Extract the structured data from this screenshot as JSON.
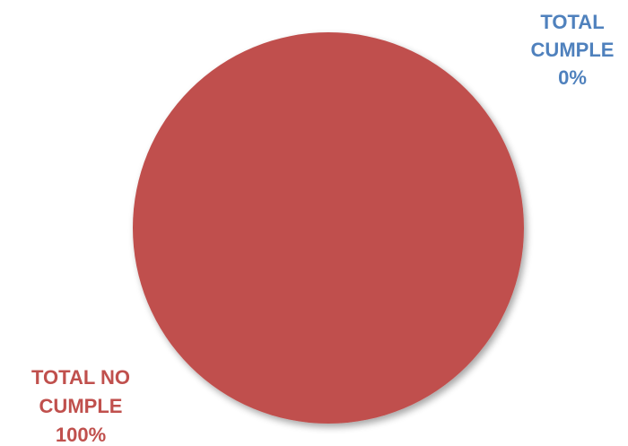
{
  "chart_data": {
    "type": "pie",
    "title": "",
    "categories": [
      "TOTAL CUMPLE",
      "TOTAL NO CUMPLE"
    ],
    "values": [
      0,
      100
    ],
    "percent_labels": [
      "0%",
      "100%"
    ],
    "colors": [
      "#4F81BD",
      "#C0504D"
    ],
    "label_colors": [
      "#4F81BD",
      "#C0504D"
    ],
    "label_lines": [
      [
        "TOTAL",
        "CUMPLE",
        "0%"
      ],
      [
        "TOTAL NO",
        "CUMPLE",
        "100%"
      ]
    ],
    "legend": "none"
  }
}
